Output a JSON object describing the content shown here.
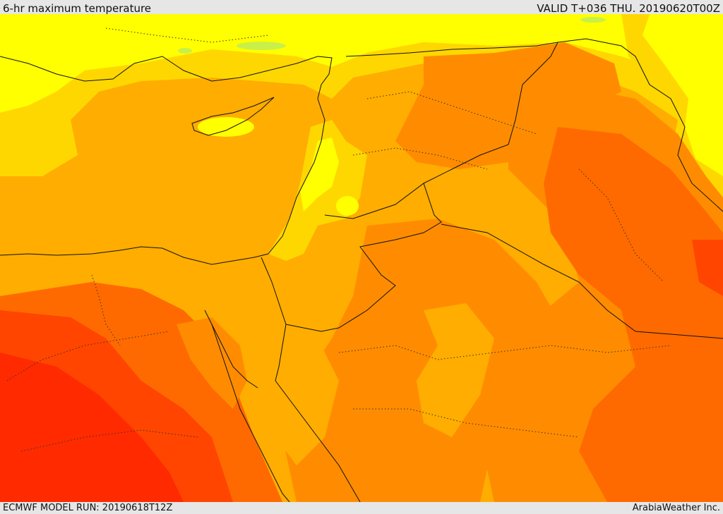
{
  "header": {
    "title": "6-hr maximum temperature",
    "valid": "VALID T+036 THU. 20190620T00Z"
  },
  "footer": {
    "model_run": "ECMWF MODEL RUN: 20190618T12Z",
    "credit": "ArabiaWeather Inc."
  },
  "map": {
    "field": "temperature",
    "colors": {
      "yellow": "#ffff00",
      "gold": "#ffd700",
      "amber": "#ffad00",
      "orange": "#ff8c00",
      "dark_orange": "#ff6a00",
      "red_orange": "#ff4500",
      "red": "#ff2a00",
      "green": "#a8e63a",
      "border": "#111111"
    }
  }
}
